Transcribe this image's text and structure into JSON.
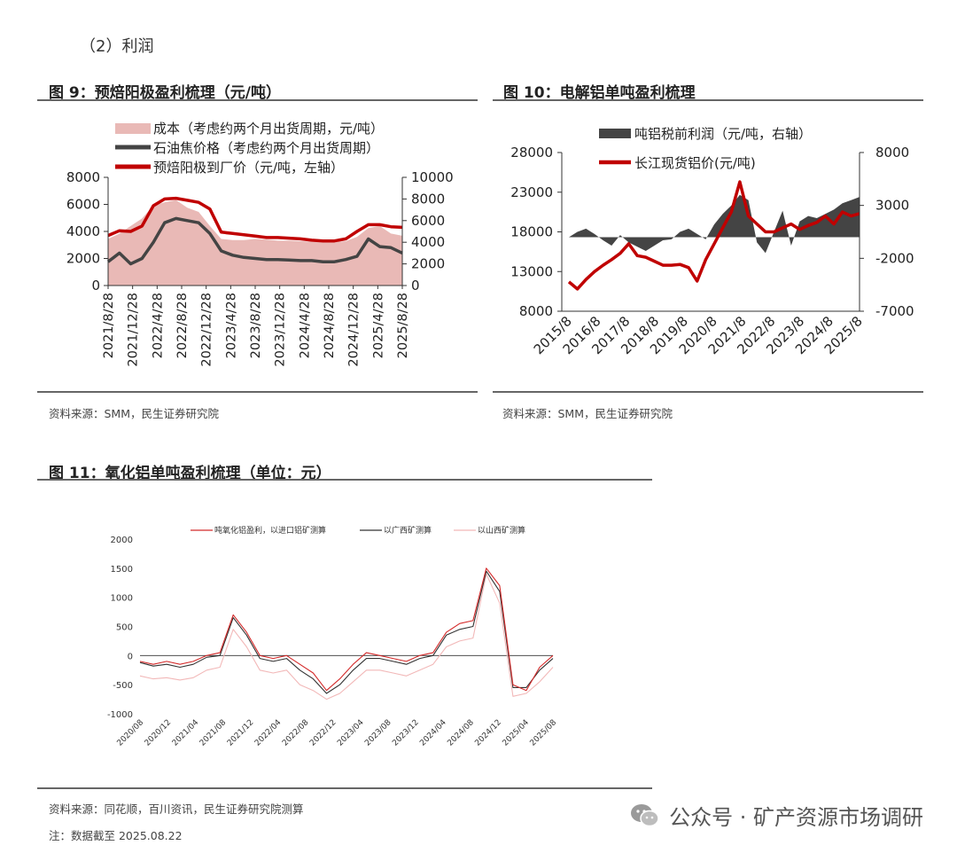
{
  "section_title": "（2）利润",
  "figures": {
    "fig9": {
      "title": "图 9：预焙阳极盈利梳理（元/吨）",
      "source": "资料来源：SMM，民生证券研究院"
    },
    "fig10": {
      "title": "图 10：电解铝单吨盈利梳理",
      "source": "资料来源：SMM，民生证券研究院"
    },
    "fig11": {
      "title": "图 11：氧化铝单吨盈利梳理（单位：元）",
      "source": "资料来源：同花顺，百川资讯，民生证券研究院测算",
      "note": "注：数据截至 2025.08.22"
    }
  },
  "watermark": {
    "text": "公众号 · 矿产资源市场调研",
    "icon": "wechat-icon"
  },
  "chart_data": [
    {
      "type": "area",
      "title": "图 9：预焙阳极盈利梳理（元/吨）",
      "x_labels": [
        "2021/8/28",
        "2021/12/28",
        "2022/4/28",
        "2022/8/28",
        "2022/12/28",
        "2023/4/28",
        "2023/8/28",
        "2023/12/28",
        "2024/4/28",
        "2024/8/28",
        "2024/12/28",
        "2025/4/28",
        "2025/8/28"
      ],
      "left_axis": {
        "ticks": [
          0,
          2000,
          4000,
          6000,
          8000
        ],
        "ylim": [
          0,
          8000
        ]
      },
      "right_axis": {
        "ticks": [
          0,
          2000,
          4000,
          6000,
          8000,
          10000
        ],
        "ylim": [
          0,
          10000
        ]
      },
      "legend": [
        "成本（考虑约两个月出货周期，元/吨）",
        "石油焦价格（考虑约两个月出货周期）",
        "预焙阳极到厂价（元/吨，左轴）"
      ],
      "colors": {
        "cost": "#e9b9b6",
        "coke": "#444444",
        "price": "#c00000"
      },
      "series": [
        {
          "name": "成本（考虑约两个月出货周期，元/吨）",
          "axis": "right",
          "values": [
            4300,
            4800,
            5500,
            6200,
            7400,
            7700,
            7900,
            7200,
            6800,
            5500,
            4300,
            4200,
            4200,
            4300,
            4250,
            4150,
            4150,
            4100,
            4050,
            4050,
            4000,
            4100,
            4500,
            5300,
            5500,
            4800,
            4600
          ]
        },
        {
          "name": "石油焦价格（考虑约两个月出货周期）",
          "axis": "right",
          "values": [
            2200,
            3000,
            2000,
            2500,
            4000,
            5800,
            6200,
            6000,
            5800,
            4800,
            3200,
            2800,
            2600,
            2500,
            2400,
            2400,
            2350,
            2300,
            2300,
            2200,
            2200,
            2400,
            2700,
            4300,
            3600,
            3500,
            3000
          ]
        },
        {
          "name": "预焙阳极到厂价（元/吨，左轴）",
          "axis": "left",
          "values": [
            3700,
            4050,
            4000,
            4400,
            5900,
            6400,
            6450,
            6300,
            6150,
            5650,
            3950,
            3850,
            3750,
            3650,
            3550,
            3550,
            3500,
            3450,
            3350,
            3300,
            3300,
            3450,
            4000,
            4500,
            4500,
            4350,
            4300
          ]
        }
      ]
    },
    {
      "type": "line",
      "title": "图 10：电解铝单吨盈利梳理",
      "x_labels": [
        "2015/8",
        "2016/8",
        "2017/8",
        "2018/8",
        "2019/8",
        "2020/8",
        "2021/8",
        "2022/8",
        "2023/8",
        "2024/8",
        "2025/8"
      ],
      "left_axis": {
        "ticks": [
          8000,
          13000,
          18000,
          23000,
          28000
        ],
        "ylim": [
          8000,
          28000
        ]
      },
      "right_axis": {
        "ticks": [
          -7000,
          -2000,
          3000,
          8000
        ],
        "ylim": [
          -7000,
          8000
        ]
      },
      "legend": [
        "吨铝税前利润（元/吨，右轴）",
        "长江现货铝价(元/吨)"
      ],
      "colors": {
        "profit": "#444444",
        "price": "#c00000"
      },
      "series": [
        {
          "name": "吨铝税前利润（元/吨，右轴）",
          "axis": "right",
          "values": [
            0,
            500,
            800,
            300,
            -300,
            -800,
            200,
            -500,
            -900,
            -1300,
            -800,
            -300,
            -200,
            500,
            800,
            300,
            -200,
            1200,
            2200,
            3000,
            4000,
            3500,
            -500,
            -1500,
            500,
            2500,
            -800,
            1500,
            2000,
            1800,
            2200,
            2600,
            3200,
            3500,
            3800
          ]
        },
        {
          "name": "长江现货铝价(元/吨)",
          "axis": "left",
          "values": [
            11700,
            10800,
            12000,
            13000,
            13800,
            14500,
            15300,
            16500,
            15000,
            14800,
            14300,
            13800,
            13800,
            13900,
            13500,
            11800,
            14500,
            16500,
            18500,
            20500,
            24300,
            20000,
            19000,
            18000,
            18000,
            18500,
            19000,
            18300,
            18800,
            19200,
            20000,
            19000,
            20500,
            20000,
            20300
          ]
        }
      ]
    },
    {
      "type": "line",
      "title": "图 11：氧化铝单吨盈利梳理（单位：元）",
      "x_labels": [
        "2020/08",
        "2020/12",
        "2021/04",
        "2021/08",
        "2021/12",
        "2022/04",
        "2022/08",
        "2022/12",
        "2023/04",
        "2023/08",
        "2023/12",
        "2024/04",
        "2024/08",
        "2024/12",
        "2025/04",
        "2025/08"
      ],
      "y_axis": {
        "ticks": [
          -1000,
          -500,
          0,
          500,
          1000,
          1500,
          2000
        ],
        "ylim": [
          -1000,
          2000
        ]
      },
      "legend": [
        "吨氧化铝盈利，以进口铝矿测算",
        "以广西矿测算",
        "以山西矿测算"
      ],
      "colors": {
        "import": "#d42b2b",
        "guangxi": "#333333",
        "shanxi": "#f2b8b8"
      },
      "series": [
        {
          "name": "吨氧化铝盈利，以进口铝矿测算",
          "values": [
            -100,
            -150,
            -100,
            -150,
            -100,
            0,
            50,
            700,
            400,
            0,
            -50,
            0,
            -150,
            -300,
            -600,
            -400,
            -150,
            50,
            0,
            -50,
            -100,
            0,
            50,
            400,
            550,
            600,
            1500,
            1200,
            -500,
            -600,
            -200,
            0
          ]
        },
        {
          "name": "以广西矿测算",
          "values": [
            -120,
            -180,
            -150,
            -200,
            -150,
            -30,
            0,
            650,
            350,
            -50,
            -100,
            -50,
            -250,
            -400,
            -650,
            -500,
            -250,
            -50,
            -50,
            -100,
            -150,
            -50,
            0,
            350,
            450,
            500,
            1450,
            1100,
            -550,
            -550,
            -250,
            -50
          ]
        },
        {
          "name": "以山西矿测算",
          "values": [
            -350,
            -400,
            -380,
            -420,
            -380,
            -250,
            -200,
            450,
            150,
            -250,
            -300,
            -250,
            -500,
            -600,
            -750,
            -650,
            -450,
            -250,
            -250,
            -300,
            -350,
            -250,
            -150,
            150,
            250,
            300,
            1400,
            900,
            -700,
            -650,
            -450,
            -200
          ]
        }
      ]
    }
  ]
}
